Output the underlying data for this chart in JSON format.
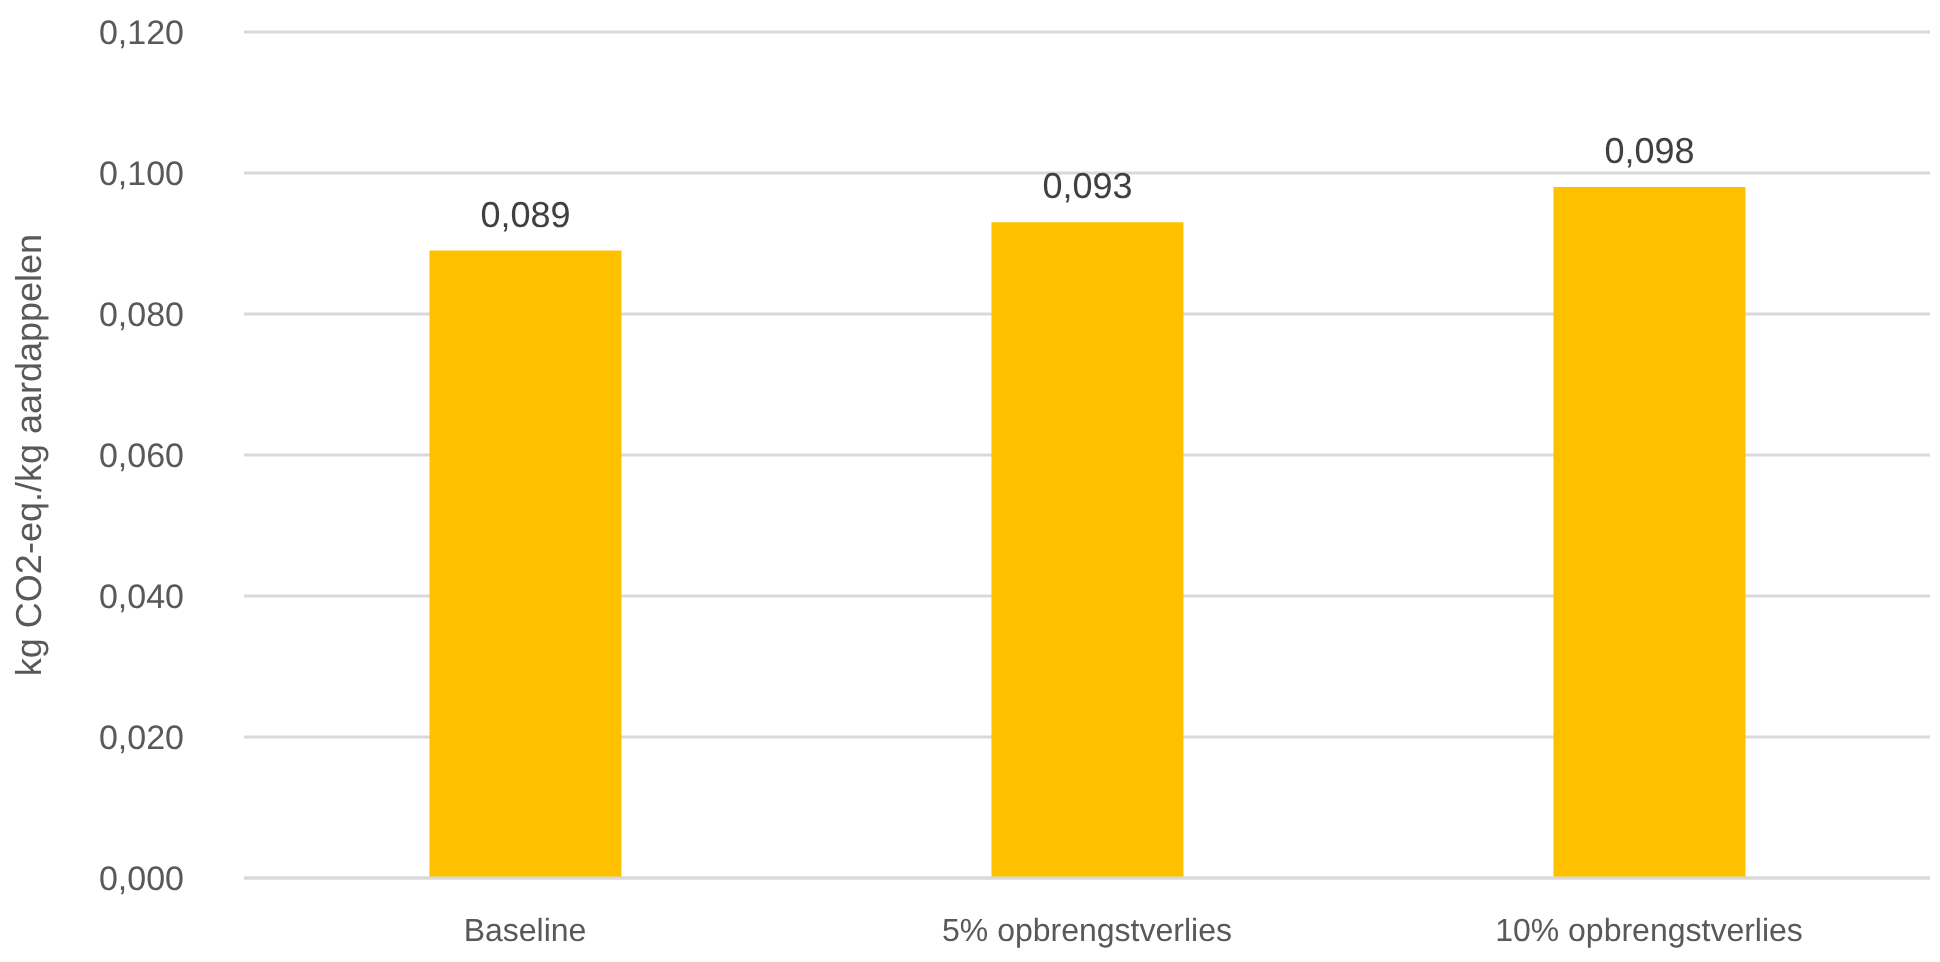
{
  "chart_data": {
    "type": "bar",
    "ylabel": "kg CO2-eq./kg aardappelen",
    "categories": [
      "Baseline",
      "5% opbrengstverlies",
      "10% opbrengstverlies"
    ],
    "values": [
      0.089,
      0.093,
      0.098
    ],
    "color": "#ffc000",
    "value_labels": [
      "0,089",
      "0,093",
      "0,098"
    ],
    "ylim": [
      0,
      0.12
    ],
    "yticks": [
      {
        "value": 0,
        "label": "0,000"
      },
      {
        "value": 0.02,
        "label": "0,020"
      },
      {
        "value": 0.04,
        "label": "0,040"
      },
      {
        "value": 0.06,
        "label": "0,060"
      },
      {
        "value": 0.08,
        "label": "0,080"
      },
      {
        "value": 0.1,
        "label": "0,100"
      },
      {
        "value": 0.12,
        "label": "0,120"
      }
    ],
    "grid": "y"
  }
}
